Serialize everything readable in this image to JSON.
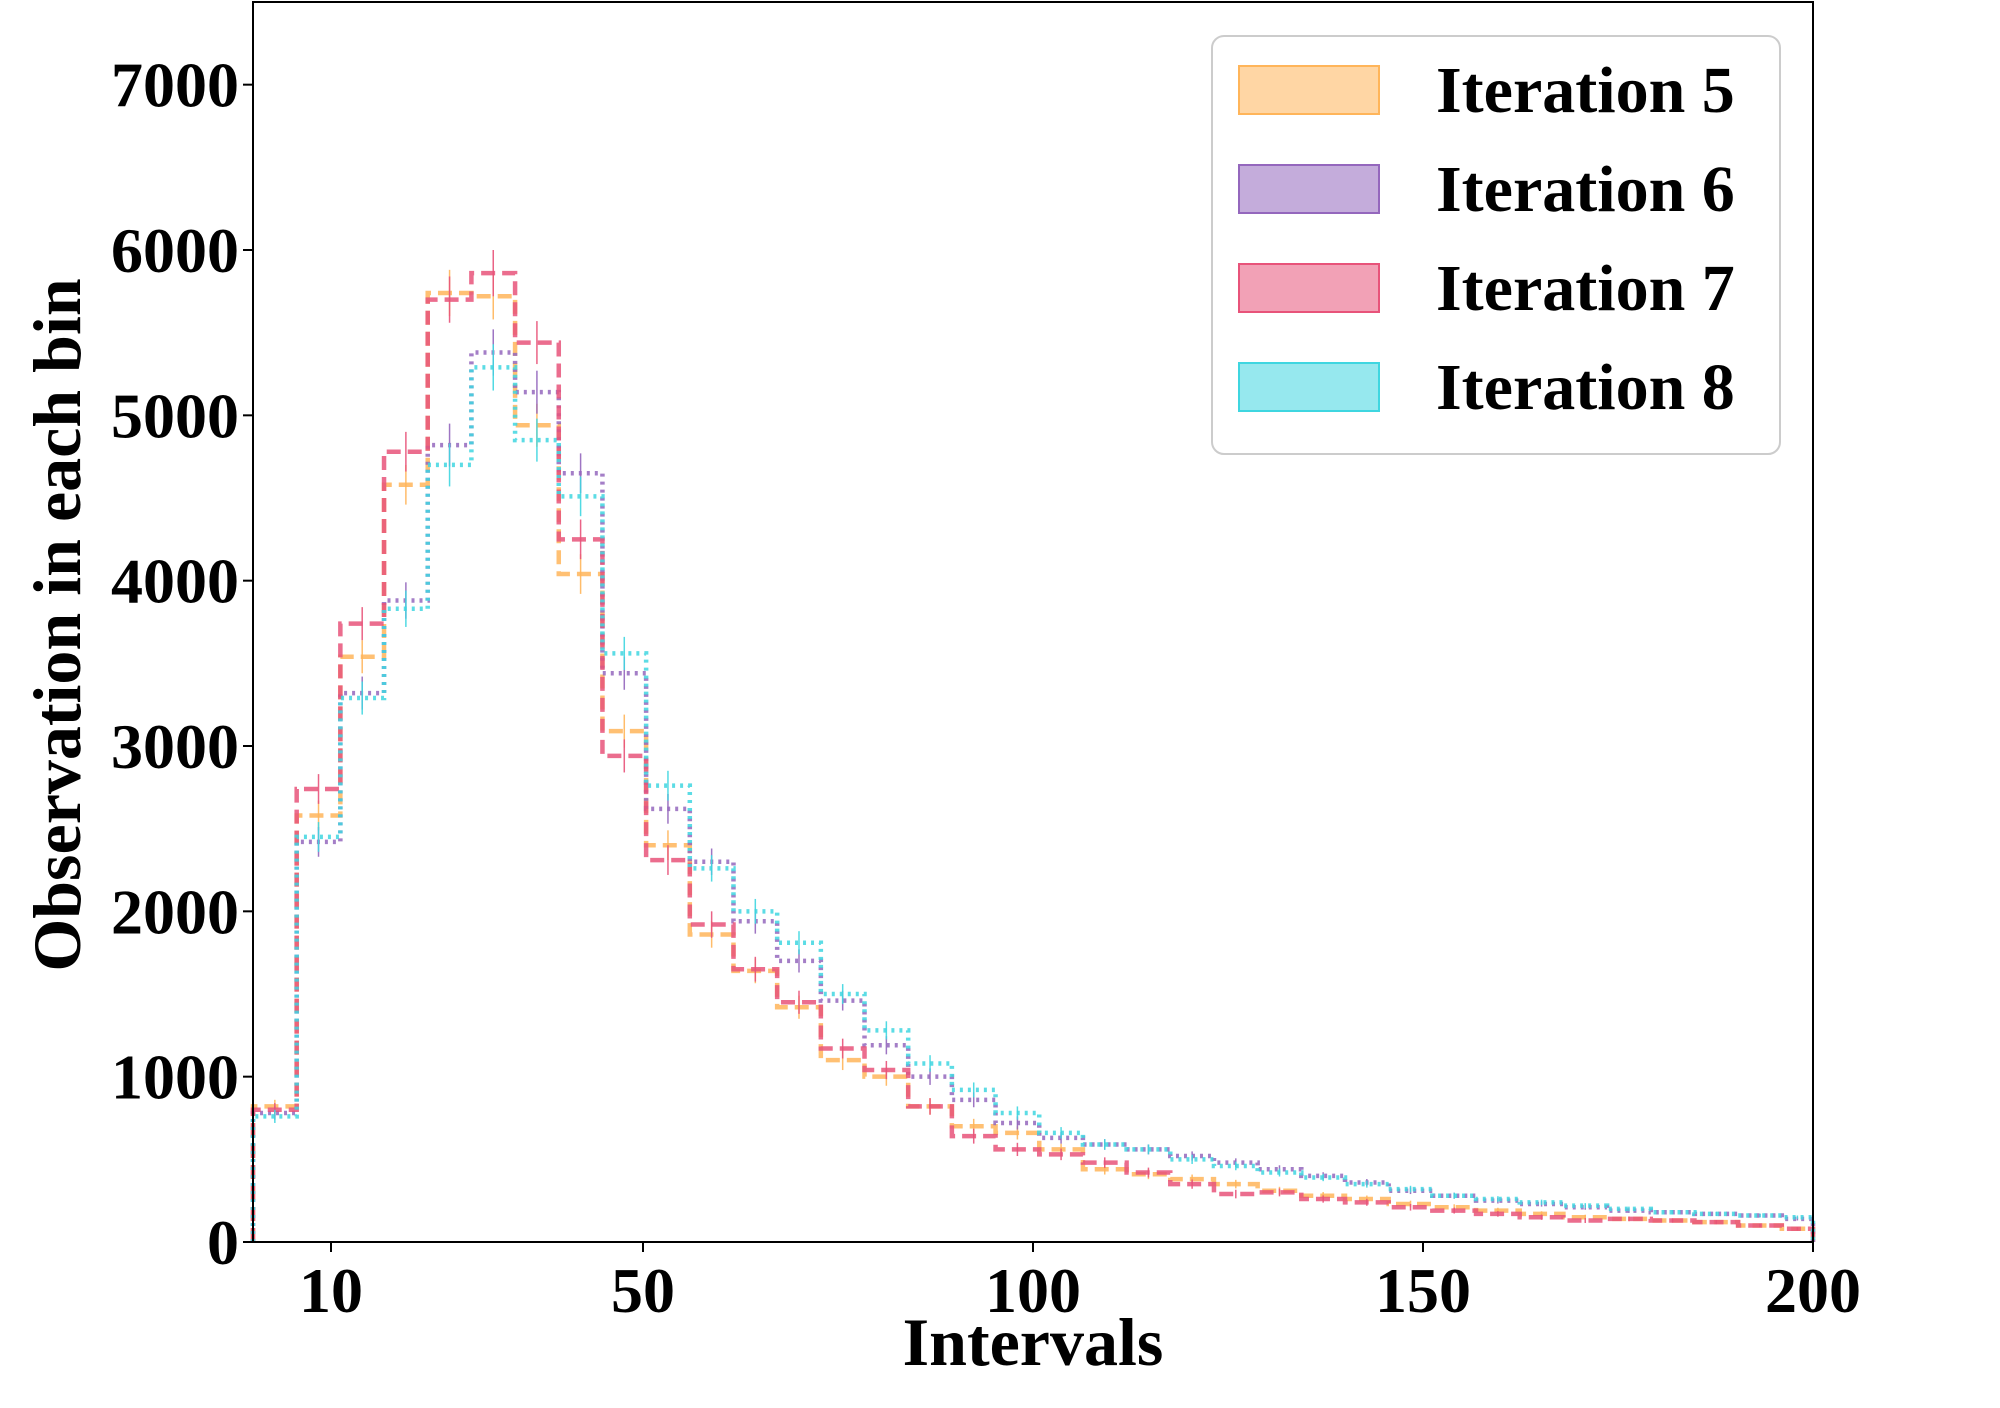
{
  "chart_data": {
    "type": "histogram",
    "xlabel": "Intervals",
    "ylabel": "Observation in each bin",
    "xlim": [
      0,
      200
    ],
    "ylim": [
      0,
      7500
    ],
    "xticks": [
      10,
      50,
      100,
      150,
      200
    ],
    "xtick_labels": [
      "10",
      "50",
      "100",
      "150",
      "200"
    ],
    "yticks": [
      0,
      1000,
      2000,
      3000,
      4000,
      5000,
      6000,
      7000
    ],
    "ytick_labels": [
      "0",
      "1000",
      "2000",
      "3000",
      "4000",
      "5000",
      "6000",
      "7000"
    ],
    "legend": {
      "position": "top-right"
    },
    "bin_edges": [
      0,
      5.6,
      11.2,
      16.8,
      22.4,
      28,
      33.6,
      39.2,
      44.8,
      50.4,
      56,
      61.6,
      67.2,
      72.8,
      78.4,
      84,
      89.6,
      95.2,
      100.8,
      106.4,
      112,
      117.6,
      123.2,
      128.8,
      134.4,
      140,
      145.6,
      151.2,
      156.8,
      162.4,
      168,
      173.6,
      179.2,
      184.8,
      190.4,
      196,
      200
    ],
    "series": [
      {
        "name": "Iteration 5",
        "color": "#ffb55a",
        "dash": "dashed",
        "values": [
          820,
          2580,
          3540,
          4580,
          5740,
          5720,
          4940,
          4040,
          3090,
          2400,
          1860,
          1640,
          1420,
          1100,
          1000,
          820,
          700,
          660,
          560,
          440,
          410,
          380,
          350,
          310,
          280,
          260,
          230,
          210,
          190,
          170,
          150,
          140,
          130,
          120,
          100,
          80
        ],
        "errors": [
          40,
          90,
          100,
          120,
          140,
          140,
          130,
          120,
          100,
          90,
          80,
          75,
          70,
          60,
          55,
          50,
          45,
          40,
          35,
          32,
          30,
          28,
          26,
          24,
          22,
          21,
          20,
          18,
          17,
          16,
          15,
          14,
          13,
          12,
          11,
          10
        ]
      },
      {
        "name": "Iteration 6",
        "color": "#9467bd",
        "dash": "dotted",
        "values": [
          780,
          2420,
          3320,
          3880,
          4820,
          5380,
          5140,
          4650,
          3440,
          2620,
          2300,
          1940,
          1700,
          1460,
          1190,
          1000,
          860,
          720,
          630,
          590,
          560,
          520,
          480,
          440,
          400,
          360,
          310,
          280,
          250,
          230,
          210,
          190,
          180,
          170,
          160,
          140
        ],
        "errors": [
          40,
          90,
          100,
          110,
          130,
          140,
          130,
          120,
          100,
          90,
          80,
          75,
          70,
          60,
          55,
          50,
          45,
          40,
          35,
          32,
          30,
          28,
          26,
          24,
          22,
          21,
          20,
          18,
          17,
          16,
          15,
          14,
          13,
          12,
          11,
          10
        ]
      },
      {
        "name": "Iteration 7",
        "color": "#e8537a",
        "dash": "dashed",
        "values": [
          800,
          2740,
          3740,
          4780,
          5700,
          5860,
          5440,
          4250,
          2940,
          2310,
          1920,
          1650,
          1450,
          1170,
          1040,
          820,
          640,
          560,
          530,
          480,
          420,
          350,
          290,
          300,
          260,
          240,
          210,
          190,
          170,
          150,
          130,
          140,
          130,
          120,
          100,
          80
        ],
        "errors": [
          40,
          90,
          100,
          120,
          140,
          140,
          130,
          120,
          100,
          90,
          80,
          75,
          70,
          60,
          55,
          50,
          45,
          40,
          35,
          32,
          30,
          28,
          26,
          24,
          22,
          21,
          20,
          18,
          17,
          16,
          15,
          14,
          13,
          12,
          11,
          10
        ]
      },
      {
        "name": "Iteration 8",
        "color": "#3fd6e0",
        "dash": "dotted",
        "values": [
          760,
          2450,
          3290,
          3830,
          4700,
          5290,
          4850,
          4510,
          3560,
          2760,
          2260,
          2000,
          1810,
          1500,
          1280,
          1080,
          920,
          780,
          660,
          590,
          560,
          500,
          460,
          420,
          390,
          350,
          320,
          280,
          260,
          240,
          220,
          200,
          180,
          170,
          160,
          150
        ],
        "errors": [
          40,
          90,
          100,
          110,
          130,
          140,
          130,
          120,
          100,
          90,
          80,
          75,
          70,
          60,
          55,
          50,
          45,
          40,
          35,
          32,
          30,
          28,
          26,
          24,
          22,
          21,
          20,
          18,
          17,
          16,
          15,
          14,
          13,
          12,
          11,
          10
        ]
      }
    ]
  }
}
